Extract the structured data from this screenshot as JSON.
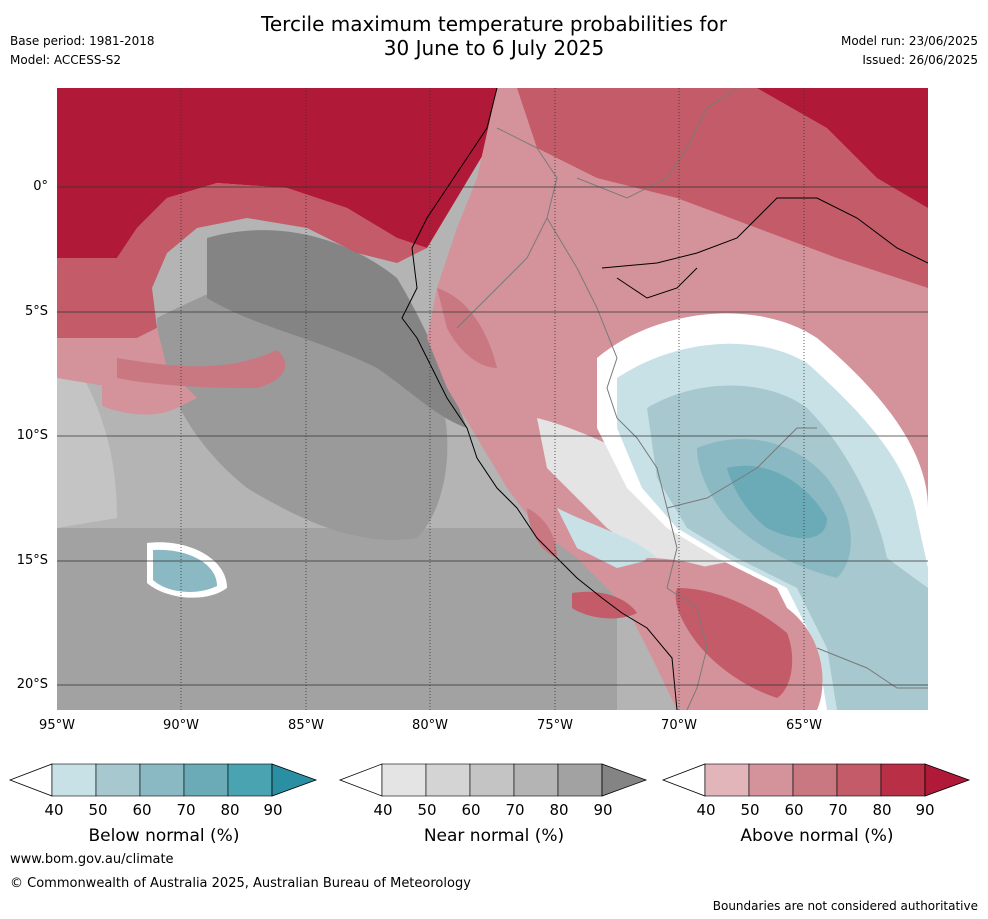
{
  "title_line1": "Tercile maximum temperature probabilities for",
  "title_line2": "30 June to 6 July 2025",
  "base_period": "Base period: 1981-2018",
  "model": "Model: ACCESS-S2",
  "model_run": "Model run: 23/06/2025",
  "issued": "Issued: 26/06/2025",
  "lat_labels": [
    "0°",
    "5°S",
    "10°S",
    "15°S",
    "20°S"
  ],
  "lon_labels": [
    "95°W",
    "90°W",
    "85°W",
    "80°W",
    "75°W",
    "70°W",
    "65°W"
  ],
  "colorbars": {
    "below": {
      "title": "Below normal (%)",
      "ticks": [
        "40",
        "50",
        "60",
        "70",
        "80",
        "90"
      ],
      "colors": [
        "#ffffff",
        "#c8e1e7",
        "#a6c8ce",
        "#8bb9c3",
        "#6aabb7",
        "#4aa3b1",
        "#2b8fa3"
      ]
    },
    "near": {
      "title": "Near normal (%)",
      "ticks": [
        "40",
        "50",
        "60",
        "70",
        "80",
        "90"
      ],
      "colors": [
        "#ffffff",
        "#e4e4e4",
        "#d4d4d4",
        "#c4c4c4",
        "#b4b4b4",
        "#a2a2a2",
        "#848484"
      ]
    },
    "above": {
      "title": "Above normal (%)",
      "ticks": [
        "40",
        "50",
        "60",
        "70",
        "80",
        "90"
      ],
      "colors": [
        "#ffffff",
        "#e2b5bb",
        "#d4939b",
        "#c97780",
        "#c35b68",
        "#b82f46",
        "#b01a38"
      ]
    }
  },
  "footer_url": "www.bom.gov.au/climate",
  "footer_copyright": "© Commonwealth of Australia 2025, Australian Bureau of Meteorology",
  "footer_note": "Boundaries are not considered authoritative"
}
